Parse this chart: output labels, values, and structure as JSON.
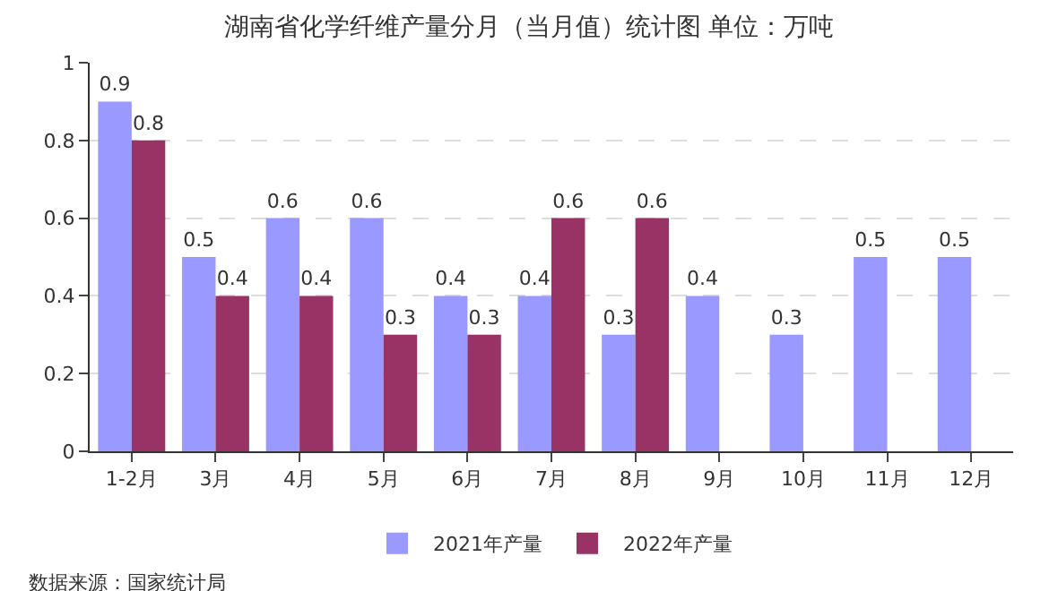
{
  "chart_data": {
    "type": "bar",
    "title": "湖南省化学纤维产量分月（当月值）统计图 单位：万吨",
    "categories": [
      "1-2月",
      "3月",
      "4月",
      "5月",
      "6月",
      "7月",
      "8月",
      "9月",
      "10月",
      "11月",
      "12月"
    ],
    "series": [
      {
        "name": "2021年产量",
        "color": "#9999ff",
        "values": [
          0.9,
          0.5,
          0.6,
          0.6,
          0.4,
          0.4,
          0.3,
          0.4,
          0.3,
          0.5,
          0.5
        ]
      },
      {
        "name": "2022年产量",
        "color": "#993366",
        "values": [
          0.8,
          0.4,
          0.4,
          0.3,
          0.3,
          0.6,
          0.6,
          null,
          null,
          null,
          null
        ]
      }
    ],
    "ylim": [
      0,
      1
    ],
    "yticks": [
      0,
      0.2,
      0.4,
      0.6,
      0.8,
      1
    ],
    "grid": "y",
    "legend": "bottom",
    "data_labels": true,
    "annotations": [
      "数据来源：国家统计局"
    ]
  }
}
